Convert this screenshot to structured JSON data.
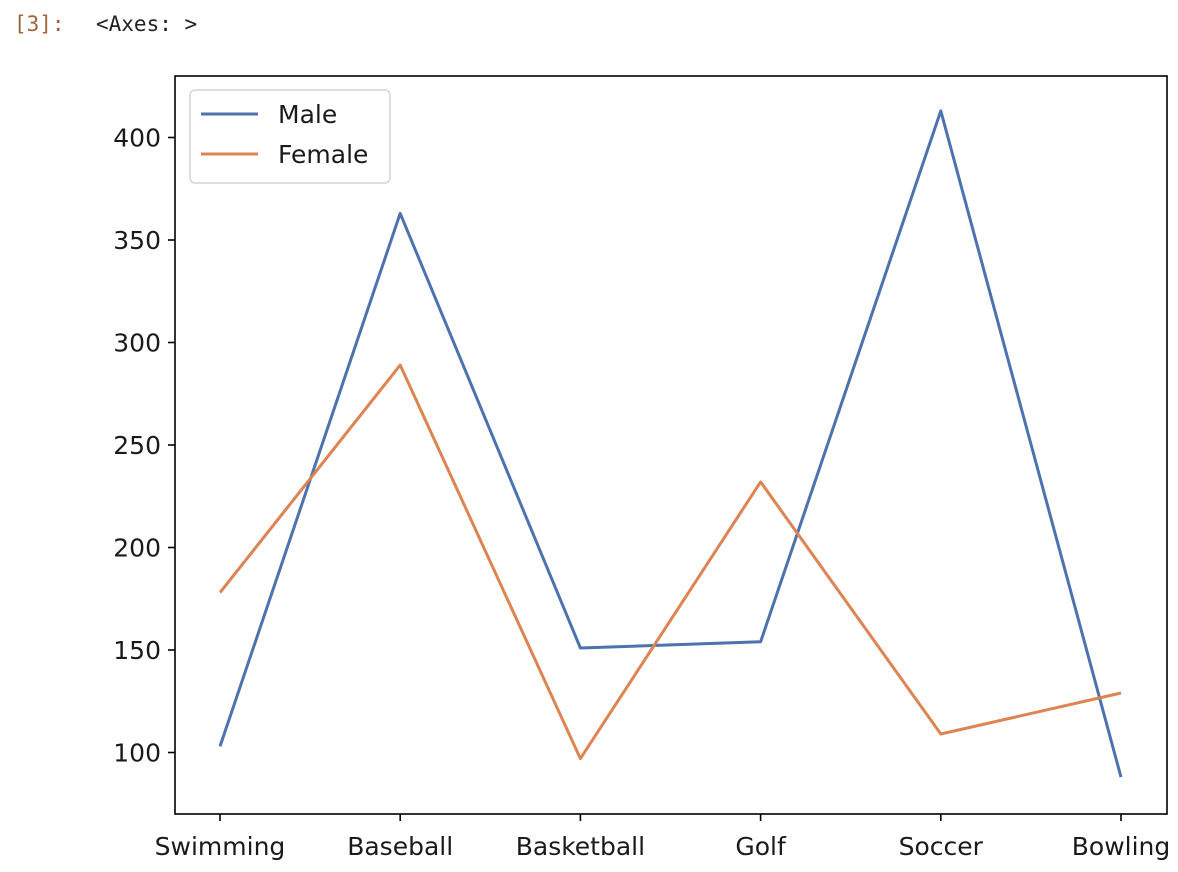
{
  "cell": {
    "prompt": "[3]:",
    "output_text": "<Axes: >"
  },
  "chart_data": {
    "type": "line",
    "categories": [
      "Swimming",
      "Baseball",
      "Basketball",
      "Golf",
      "Soccer",
      "Bowling"
    ],
    "series": [
      {
        "name": "Male",
        "color": "#4c72b0",
        "values": [
          103,
          363,
          151,
          154,
          413,
          88
        ]
      },
      {
        "name": "Female",
        "color": "#dd8452",
        "values": [
          178,
          289,
          97,
          232,
          109,
          129
        ]
      }
    ],
    "title": "",
    "xlabel": "",
    "ylabel": "",
    "ylim": [
      70,
      430
    ],
    "yticks": [
      100,
      150,
      200,
      250,
      300,
      350,
      400
    ],
    "grid": false,
    "legend_position": "upper-left"
  }
}
